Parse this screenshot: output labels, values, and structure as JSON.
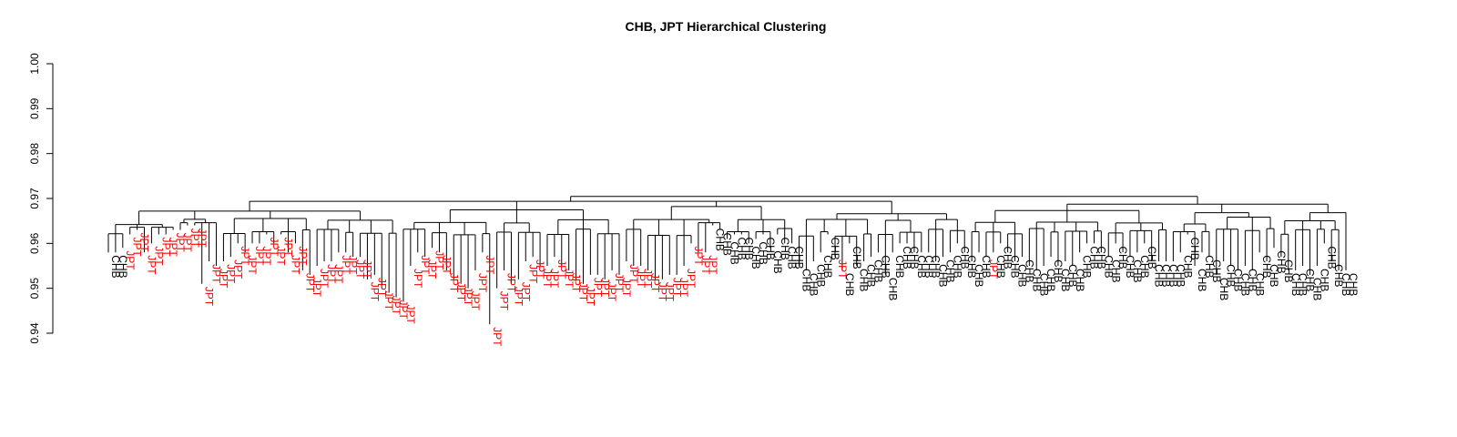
{
  "chart_data": {
    "type": "dendrogram",
    "title": "CHB, JPT Hierarchical Clustering",
    "xlabel": "",
    "ylabel": "",
    "ylim": [
      0.94,
      1.0
    ],
    "y_ticks": [
      "0.94",
      "0.95",
      "0.96",
      "0.97",
      "0.98",
      "0.99",
      "1.00"
    ],
    "grid": false,
    "colors": {
      "CHB": "#000000",
      "JPT": "#ff0000"
    },
    "groups": [
      {
        "label": "CHB",
        "heights": [
          0.958,
          0.958
        ]
      },
      {
        "label": "JPT",
        "heights": [
          0.959,
          0.962,
          0.963,
          0.958,
          0.96,
          0.962,
          0.962,
          0.963,
          0.963,
          0.964,
          0.964,
          0.951,
          0.956,
          0.955,
          0.956,
          0.957,
          0.96,
          0.958,
          0.96,
          0.96,
          0.962,
          0.96,
          0.962,
          0.958,
          0.96,
          0.954,
          0.953,
          0.955,
          0.956,
          0.956,
          0.958,
          0.958,
          0.957,
          0.957,
          0.952,
          0.953,
          0.95,
          0.949,
          0.948,
          0.947,
          0.955,
          0.958,
          0.957,
          0.959,
          0.958,
          0.954,
          0.952,
          0.951,
          0.95,
          0.954,
          0.958,
          0.942,
          0.95,
          0.954,
          0.951,
          0.952,
          0.956,
          0.957,
          0.955,
          0.955,
          0.957,
          0.955,
          0.954,
          0.952,
          0.951,
          0.953,
          0.953,
          0.952,
          0.954,
          0.953,
          0.956,
          0.955,
          0.955,
          0.954,
          0.952,
          0.952,
          0.953,
          0.953,
          0.955,
          0.96,
          0.958,
          0.958
        ]
      },
      {
        "label": "CHB",
        "heights": [
          0.964,
          0.963,
          0.961,
          0.962,
          0.962,
          0.96,
          0.961,
          0.962,
          0.959,
          0.962,
          0.96,
          0.96,
          0.955,
          0.954,
          0.956,
          0.958,
          0.962
        ]
      },
      {
        "label": "JPT",
        "heights": [
          0.957
        ]
      },
      {
        "label": "CHB",
        "heights": [
          0.954,
          0.96,
          0.955,
          0.956,
          0.957,
          0.958,
          0.953,
          0.958,
          0.96,
          0.96,
          0.958,
          0.958,
          0.958,
          0.956,
          0.957,
          0.958,
          0.96,
          0.958,
          0.956,
          0.958
        ]
      },
      {
        "label": "JPT",
        "heights": [
          0.957
        ]
      },
      {
        "label": "CHB",
        "heights": [
          0.958,
          0.96,
          0.958,
          0.956,
          0.957,
          0.955,
          0.954,
          0.955,
          0.957,
          0.955,
          0.956,
          0.955,
          0.958,
          0.96,
          0.96,
          0.958,
          0.957,
          0.96,
          0.958,
          0.957,
          0.958,
          0.96,
          0.956,
          0.956,
          0.956,
          0.956,
          0.958,
          0.962,
          0.955,
          0.958,
          0.957,
          0.953,
          0.956,
          0.955,
          0.954,
          0.955,
          0.954,
          0.958,
          0.956,
          0.959,
          0.957,
          0.954,
          0.954,
          0.955,
          0.953,
          0.955,
          0.96,
          0.956,
          0.954,
          0.954
        ]
      }
    ],
    "top_merges": [
      0.9755,
      0.9753,
      0.9742,
      0.9735,
      0.9725,
      0.9715
    ]
  }
}
